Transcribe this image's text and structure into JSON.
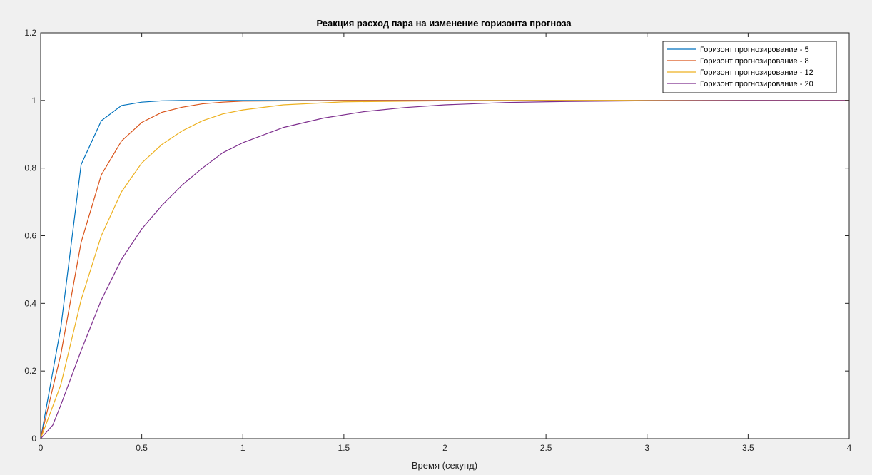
{
  "chart_data": {
    "type": "line",
    "title": "Реакция расход пара на изменение горизонта прогноза",
    "xlabel": "Время (секунд)",
    "ylabel": "",
    "xlim": [
      0,
      4
    ],
    "ylim": [
      0,
      1.2
    ],
    "xticks": [
      "0",
      "0.5",
      "1",
      "1.5",
      "2",
      "2.5",
      "3",
      "3.5",
      "4"
    ],
    "yticks": [
      "0",
      "0.2",
      "0.4",
      "0.6",
      "0.8",
      "1",
      "1.2"
    ],
    "grid": false,
    "legend_position": "top-right",
    "series": [
      {
        "name": "Горизонт прогнозирование - 5",
        "color": "#0072BD",
        "x": [
          0,
          0.1,
          0.2,
          0.3,
          0.4,
          0.5,
          0.6,
          0.7,
          0.8,
          0.9,
          1.0,
          1.5,
          2.0,
          2.5,
          3.0,
          3.5,
          4.0
        ],
        "y": [
          0,
          0.33,
          0.81,
          0.94,
          0.985,
          0.995,
          0.999,
          1.0,
          1.0,
          1.0,
          1.0,
          1.0,
          1.0,
          1.0,
          1.0,
          1.0,
          1.0
        ]
      },
      {
        "name": "Горизонт прогнозирование - 8",
        "color": "#D95319",
        "x": [
          0,
          0.1,
          0.2,
          0.3,
          0.4,
          0.5,
          0.6,
          0.7,
          0.8,
          0.9,
          1.0,
          1.5,
          2.0,
          2.5,
          3.0,
          3.5,
          4.0
        ],
        "y": [
          0,
          0.25,
          0.58,
          0.78,
          0.88,
          0.935,
          0.965,
          0.98,
          0.99,
          0.995,
          0.998,
          1.0,
          1.0,
          1.0,
          1.0,
          1.0,
          1.0
        ]
      },
      {
        "name": "Горизонт прогнозирование - 12",
        "color": "#EDB120",
        "x": [
          0,
          0.1,
          0.2,
          0.3,
          0.4,
          0.5,
          0.6,
          0.7,
          0.8,
          0.9,
          1.0,
          1.2,
          1.5,
          2.0,
          2.5,
          3.0,
          3.5,
          4.0
        ],
        "y": [
          0,
          0.16,
          0.41,
          0.6,
          0.73,
          0.815,
          0.87,
          0.91,
          0.94,
          0.96,
          0.972,
          0.987,
          0.996,
          0.999,
          1.0,
          1.0,
          1.0,
          1.0
        ]
      },
      {
        "name": "Горизонт прогнозирование - 20",
        "color": "#7E2F8E",
        "x": [
          0,
          0.06,
          0.1,
          0.2,
          0.3,
          0.4,
          0.5,
          0.6,
          0.7,
          0.8,
          0.9,
          1.0,
          1.2,
          1.4,
          1.6,
          1.8,
          2.0,
          2.3,
          2.6,
          3.0,
          3.5,
          4.0
        ],
        "y": [
          0,
          0.04,
          0.1,
          0.26,
          0.41,
          0.53,
          0.62,
          0.69,
          0.75,
          0.8,
          0.845,
          0.875,
          0.92,
          0.948,
          0.967,
          0.979,
          0.987,
          0.994,
          0.997,
          0.999,
          1.0,
          1.0
        ]
      }
    ]
  }
}
